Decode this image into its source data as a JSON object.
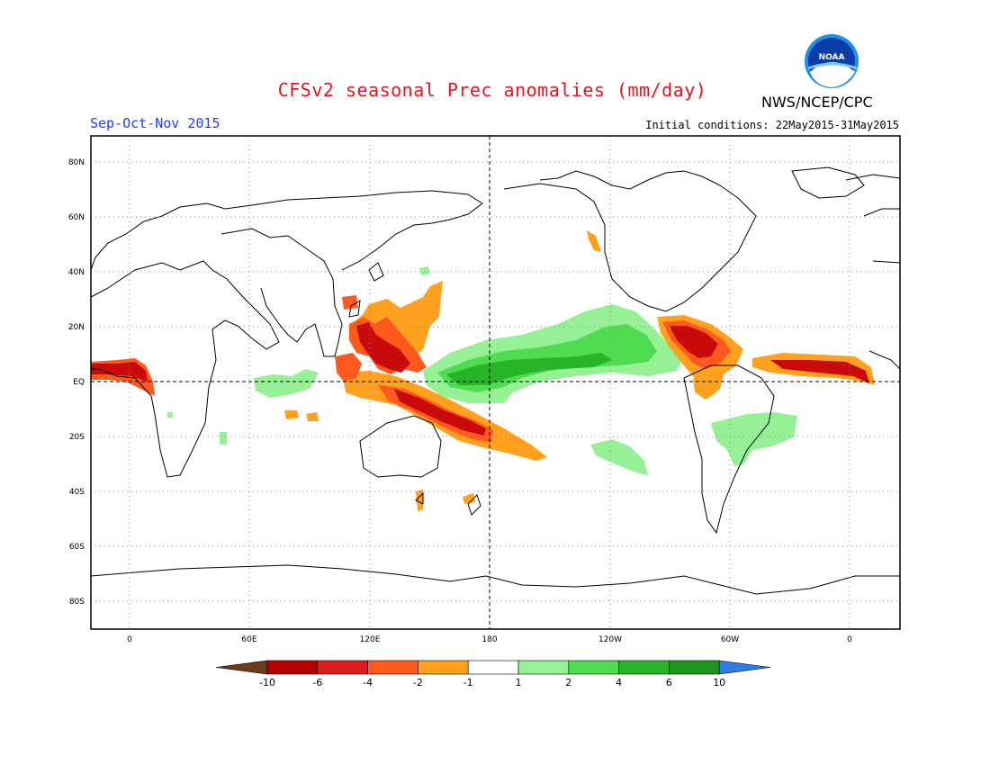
{
  "title": "CFSv2 seasonal Prec anomalies (mm/day)",
  "season": "Sep-Oct-Nov 2015",
  "initial_conditions": "Initial conditions: 22May2015-31May2015",
  "agency": "NWS/NCEP/CPC",
  "logo_text": "NOAA",
  "lat_labels": [
    "80N",
    "60N",
    "40N",
    "20N",
    "EQ",
    "20S",
    "40S",
    "60S",
    "80S"
  ],
  "lon_labels": [
    "0",
    "60E",
    "120E",
    "180",
    "120W",
    "60W",
    "0"
  ],
  "colorbar": {
    "labels": [
      "-10",
      "-6",
      "-4",
      "-2",
      "-1",
      "1",
      "2",
      "4",
      "6",
      "10"
    ],
    "colors": [
      "#6e3a1e",
      "#b40000",
      "#dc1e1e",
      "#ff5a1e",
      "#ffa01e",
      "#ffffff",
      "#96f096",
      "#50dc50",
      "#28b428",
      "#1e961e",
      "#2d7de6"
    ]
  },
  "colors": {
    "strong_dry": "#c80a0a",
    "dry": "#ff5a1e",
    "moderate_dry": "#ffa01e",
    "light_wet": "#96f096",
    "wet": "#50dc50",
    "strong_wet": "#28b428"
  }
}
